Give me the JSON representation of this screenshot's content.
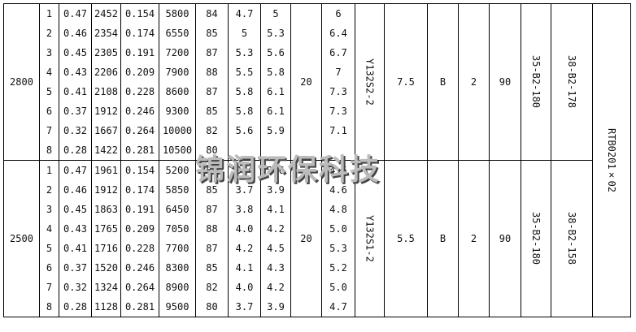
{
  "watermark": "锦润环保科技",
  "model": "RTB0201×02",
  "groups": [
    {
      "speed": "2800",
      "col10": "20",
      "motor": "Y132S2-2",
      "power": "7.5",
      "col_b": "B",
      "col_2": "2",
      "col_90": "90",
      "part1": "35-B2-180",
      "part2": "38-B2-178",
      "rows": [
        [
          "1",
          "0.47",
          "2452",
          "0.154",
          "5800",
          "84",
          "4.7",
          "5",
          "6"
        ],
        [
          "2",
          "0.46",
          "2354",
          "0.174",
          "6550",
          "85",
          "5",
          "5.3",
          "6.4"
        ],
        [
          "3",
          "0.45",
          "2305",
          "0.191",
          "7200",
          "87",
          "5.3",
          "5.6",
          "6.7"
        ],
        [
          "4",
          "0.43",
          "2206",
          "0.209",
          "7900",
          "88",
          "5.5",
          "5.8",
          "7"
        ],
        [
          "5",
          "0.41",
          "2108",
          "0.228",
          "8600",
          "87",
          "5.8",
          "6.1",
          "7.3"
        ],
        [
          "6",
          "0.37",
          "1912",
          "0.246",
          "9300",
          "85",
          "5.8",
          "6.1",
          "7.3"
        ],
        [
          "7",
          "0.32",
          "1667",
          "0.264",
          "10000",
          "82",
          "5.6",
          "5.9",
          "7.1"
        ],
        [
          "8",
          "0.28",
          "1422",
          "0.281",
          "10500",
          "80",
          "",
          "",
          ""
        ]
      ]
    },
    {
      "speed": "2500",
      "col10": "20",
      "motor": "Y132S1-2",
      "power": "5.5",
      "col_b": "B",
      "col_2": "2",
      "col_90": "90",
      "part1": "35-B2-180",
      "part2": "38-B2-158",
      "rows": [
        [
          "1",
          "0.47",
          "1961",
          "0.154",
          "5200",
          "84",
          "3.4",
          "3.6",
          "4.5"
        ],
        [
          "2",
          "0.46",
          "1912",
          "0.174",
          "5850",
          "85",
          "3.7",
          "3.9",
          "4.6"
        ],
        [
          "3",
          "0.45",
          "1863",
          "0.191",
          "6450",
          "87",
          "3.8",
          "4.1",
          "4.8"
        ],
        [
          "4",
          "0.43",
          "1765",
          "0.209",
          "7050",
          "88",
          "4.0",
          "4.2",
          "5.0"
        ],
        [
          "5",
          "0.41",
          "1716",
          "0.228",
          "7700",
          "87",
          "4.2",
          "4.5",
          "5.3"
        ],
        [
          "6",
          "0.37",
          "1520",
          "0.246",
          "8300",
          "85",
          "4.1",
          "4.3",
          "5.2"
        ],
        [
          "7",
          "0.32",
          "1324",
          "0.264",
          "8900",
          "82",
          "4.0",
          "4.2",
          "5.0"
        ],
        [
          "8",
          "0.28",
          "1128",
          "0.281",
          "9500",
          "80",
          "3.7",
          "3.9",
          "4.7"
        ]
      ]
    }
  ]
}
